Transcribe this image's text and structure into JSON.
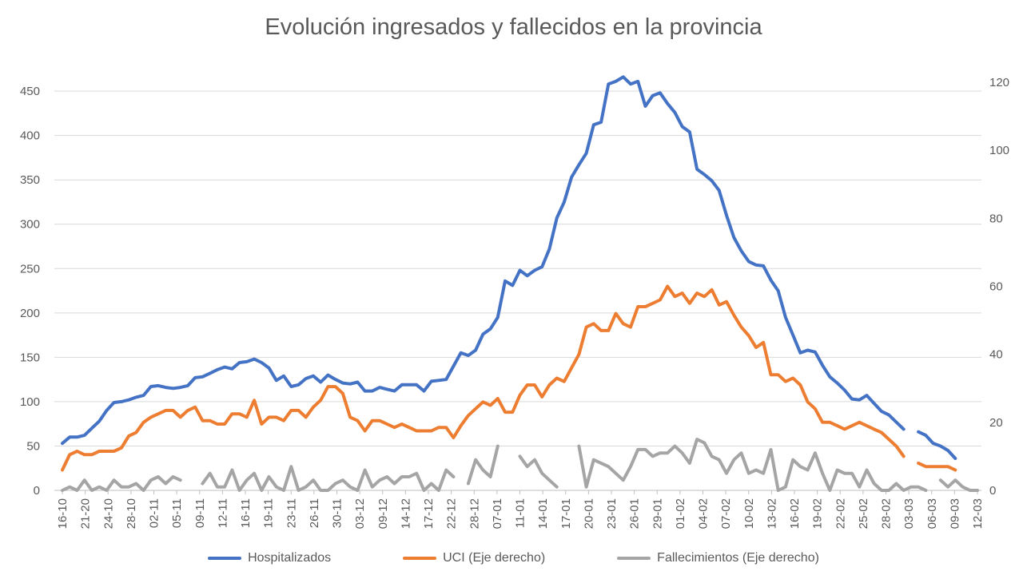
{
  "chart_data": {
    "type": "line",
    "title": "Evolución ingresados y fallecidos en la provincia",
    "xlabel": "",
    "ylabel": "",
    "ylim": [
      0,
      450
    ],
    "y_ticks": [
      "0",
      "50",
      "100",
      "150",
      "200",
      "250",
      "300",
      "350",
      "400",
      "450"
    ],
    "y2lim": [
      0,
      120
    ],
    "y2_ticks": [
      "0",
      "20",
      "40",
      "60",
      "80",
      "100",
      "120"
    ],
    "grid": "horizontal",
    "legend_position": "bottom",
    "x_tick_labels": [
      "16-10",
      "21-20",
      "24-10",
      "28-10",
      "02-11",
      "05-11",
      "09-11",
      "12-11",
      "16-11",
      "19-11",
      "23-11",
      "26-11",
      "30-11",
      "03-12",
      "09-12",
      "14-12",
      "17-12",
      "22-12",
      "28-12",
      "07-01",
      "11-01",
      "14-01",
      "17-01",
      "20-01",
      "23-01",
      "26-01",
      "29-01",
      "01-02",
      "04-02",
      "07-02",
      "10-02",
      "13-02",
      "16-02",
      "19-02",
      "22-02",
      "25-02",
      "28-02",
      "03-03",
      "06-03",
      "09-03",
      "12-03"
    ],
    "series": [
      {
        "name": "Hospitalizados",
        "axis": "left",
        "color": "#4472C4",
        "values": [
          53,
          60,
          60,
          62,
          70,
          78,
          90,
          99,
          100,
          102,
          105,
          107,
          117,
          118,
          116,
          115,
          116,
          118,
          127,
          128,
          132,
          136,
          139,
          137,
          144,
          145,
          148,
          144,
          138,
          124,
          129,
          117,
          119,
          126,
          129,
          122,
          130,
          125,
          121,
          120,
          122,
          112,
          112,
          116,
          114,
          112,
          119,
          119,
          119,
          112,
          123,
          124,
          125,
          140,
          155,
          152,
          158,
          176,
          182,
          195,
          236,
          231,
          248,
          242,
          248,
          252,
          272,
          307,
          325,
          353,
          367,
          380,
          412,
          415,
          458,
          461,
          466,
          458,
          461,
          433,
          445,
          448,
          436,
          426,
          410,
          404,
          362,
          356,
          349,
          338,
          310,
          285,
          270,
          258,
          254,
          253,
          237,
          225,
          195,
          175,
          155,
          158,
          156,
          141,
          128,
          121,
          113,
          103,
          102,
          107,
          98,
          89,
          85,
          77,
          69,
          null,
          66,
          62,
          53,
          50,
          45,
          36
        ]
      },
      {
        "name": "UCI (Eje derecho)",
        "axis": "right",
        "color": "#ED7D31",
        "values": [
          6,
          10.5,
          11.5,
          10.5,
          10.5,
          11.5,
          11.5,
          11.5,
          12.5,
          16,
          17,
          20,
          21.5,
          22.5,
          23.5,
          23.5,
          21.5,
          23.5,
          24.5,
          20.5,
          20.5,
          19.5,
          19.5,
          22.5,
          22.5,
          21.5,
          26.5,
          19.5,
          21.5,
          21.5,
          20.5,
          23.5,
          23.5,
          21.5,
          24.5,
          26.5,
          30.5,
          30.5,
          28.5,
          21.5,
          20.5,
          17.5,
          20.5,
          20.5,
          19.5,
          18.5,
          19.5,
          18.5,
          17.5,
          17.5,
          17.5,
          18.5,
          18.5,
          15.5,
          19,
          22,
          24,
          26,
          25,
          27,
          23,
          23,
          28,
          31,
          31,
          27.5,
          31,
          33,
          32,
          36,
          40,
          48,
          49,
          47,
          47,
          52,
          49,
          48,
          54,
          54,
          55,
          56,
          60,
          57,
          58,
          55,
          58,
          57,
          59,
          54.5,
          55.5,
          51.5,
          48,
          45.5,
          42,
          43.5,
          34,
          34,
          32,
          33,
          31,
          26,
          24,
          20,
          20,
          19,
          18,
          19,
          20,
          19,
          18,
          17,
          15,
          13,
          10,
          null,
          8,
          7,
          7,
          7,
          7,
          6
        ]
      },
      {
        "name": "Fallecimientos (Eje derecho)",
        "axis": "right",
        "color": "#A5A5A5",
        "values": [
          0,
          1,
          0,
          3,
          0,
          1,
          0,
          3,
          1,
          1,
          2,
          0,
          3,
          4,
          2,
          4,
          3,
          null,
          null,
          2,
          5,
          1,
          1,
          6,
          0,
          3,
          5,
          0,
          4,
          1,
          0,
          7,
          0,
          1,
          3,
          0,
          0,
          2,
          3,
          1,
          0,
          6,
          1,
          3,
          4,
          2,
          4,
          4,
          5,
          0,
          2,
          0,
          6,
          4,
          null,
          2,
          9,
          6,
          4,
          13,
          null,
          null,
          10,
          7,
          9,
          5,
          3,
          1,
          null,
          null,
          13,
          1,
          9,
          8,
          7,
          5,
          3,
          7,
          12,
          12,
          10,
          11,
          11,
          13,
          11,
          8,
          15,
          14,
          10,
          9,
          5,
          9,
          11,
          5,
          6,
          5,
          12,
          0,
          1,
          9,
          7,
          6,
          11,
          5,
          0,
          6,
          5,
          5,
          1,
          6,
          2,
          0,
          0,
          2,
          0,
          1,
          1,
          0,
          null,
          3,
          1,
          3,
          1,
          0,
          0
        ]
      }
    ]
  }
}
